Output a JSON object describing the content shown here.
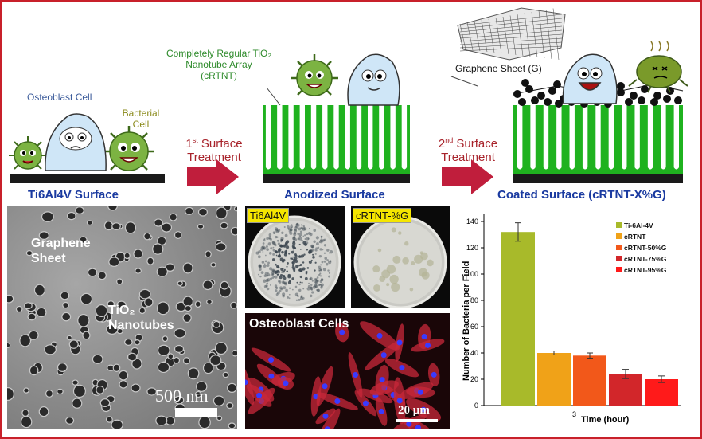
{
  "figure": {
    "left_label": "Ti6Al4V Surface",
    "mid_label": "Anodized Surface",
    "right_label": "Coated Surface (cRTNT-X%G)",
    "osteoblast_label": "Osteoblast Cell",
    "bacterial_label_1": "Bacterial",
    "bacterial_label_2": "Cell",
    "nanotube_label_1": "Completely Regular TiO₂",
    "nanotube_label_2": "Nanotube Array",
    "nanotube_label_3": "(cRTNT)",
    "graphene_label": "Graphene Sheet (G)",
    "treat1_line1_sup": "st",
    "treat1_line1_num": "1",
    "treat1_line1_rest": " Surface",
    "treat1_line2": "Treatment",
    "treat2_line1_sup": "nd",
    "treat2_line1_num": "2",
    "treat2_line1_rest": " Surface",
    "treat2_line2": "Treatment"
  },
  "sem": {
    "graphene_1": "Graphene",
    "graphene_2": "Sheet",
    "tio2_1": "TiO₂",
    "tio2_2": "Nanotubes",
    "scale": "500 nm"
  },
  "dishes": {
    "left_tag": "Ti6Al4V",
    "right_tag": "cRTNT-%G"
  },
  "fluor": {
    "title": "Osteoblast Cells",
    "scale": "20 µm"
  },
  "colors": {
    "frame": "#c8202a",
    "arrow": "#c01e3c",
    "tube_green": "#1fb21f",
    "title_blue": "#1a3aa0"
  },
  "chart_data": {
    "type": "bar",
    "categories": [
      "3"
    ],
    "xlabel": "Time (hour)",
    "ylabel": "Number of Bacteria per Field",
    "ylim": [
      0,
      140
    ],
    "yticks": [
      0,
      20,
      40,
      60,
      80,
      100,
      120,
      140
    ],
    "legend_position": "top-right",
    "grid": false,
    "series": [
      {
        "name": "Ti-6Al-4V",
        "values": [
          132
        ],
        "error": [
          7
        ],
        "color": "#a8ba2a"
      },
      {
        "name": "cRTNT",
        "values": [
          40
        ],
        "error": [
          1.5
        ],
        "color": "#f0a218"
      },
      {
        "name": "cRTNT-50%G",
        "values": [
          38
        ],
        "error": [
          2
        ],
        "color": "#f2581a"
      },
      {
        "name": "cRTNT-75%G",
        "values": [
          24
        ],
        "error": [
          3.5
        ],
        "color": "#d2262a"
      },
      {
        "name": "cRTNT-95%G",
        "values": [
          20
        ],
        "error": [
          2.5
        ],
        "color": "#ff1a1a"
      }
    ]
  }
}
